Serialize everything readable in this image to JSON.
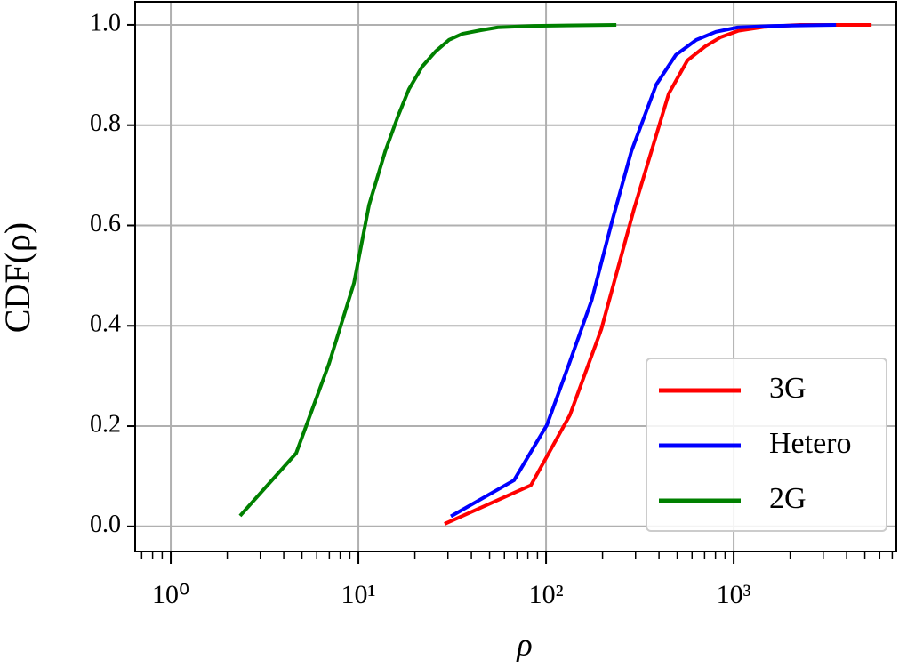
{
  "chart_data": {
    "type": "line",
    "xlabel": "ρ",
    "ylabel": "CDF(ρ)",
    "x_scale": "log",
    "x_minor_ticks": true,
    "grid": true,
    "legend": "lower right",
    "xlim": [
      0.646,
      7360
    ],
    "ylim": [
      -0.05,
      1.046
    ],
    "xticks": [
      {
        "value": 1,
        "label": "10⁰"
      },
      {
        "value": 10,
        "label": "10¹"
      },
      {
        "value": 100,
        "label": "10²"
      },
      {
        "value": 1000,
        "label": "10³"
      }
    ],
    "yticks": [
      {
        "value": 0,
        "label": "0.0"
      },
      {
        "value": 0.2,
        "label": "0.2"
      },
      {
        "value": 0.4,
        "label": "0.4"
      },
      {
        "value": 0.6,
        "label": "0.6"
      },
      {
        "value": 0.8,
        "label": "0.8"
      },
      {
        "value": 1,
        "label": "1.0"
      }
    ],
    "series": [
      {
        "name": "3G",
        "color": "#ff0000",
        "x": [
          28.8,
          83.0,
          134,
          197,
          294,
          451,
          567,
          705,
          849,
          1056,
          1465,
          2265,
          5430
        ],
        "values": [
          0.005,
          0.082,
          0.222,
          0.393,
          0.632,
          0.863,
          0.929,
          0.957,
          0.975,
          0.988,
          0.996,
          1.0,
          1.0
        ]
      },
      {
        "name": "Hetero",
        "color": "#0000ff",
        "x": [
          31.1,
          67.5,
          101,
          133,
          175,
          224,
          285,
          387,
          492,
          632,
          804,
          1056,
          1633,
          3510
        ],
        "values": [
          0.02,
          0.092,
          0.202,
          0.325,
          0.451,
          0.606,
          0.748,
          0.881,
          0.94,
          0.97,
          0.986,
          0.995,
          0.998,
          1.0
        ]
      },
      {
        "name": "2G",
        "color": "#008000",
        "x": [
          2.34,
          4.66,
          6.98,
          9.47,
          11.4,
          13.9,
          16.3,
          18.6,
          21.9,
          25.8,
          30.4,
          35.8,
          44.6,
          55.4,
          85.9,
          237
        ],
        "values": [
          0.021,
          0.146,
          0.325,
          0.485,
          0.641,
          0.748,
          0.819,
          0.872,
          0.917,
          0.947,
          0.97,
          0.982,
          0.989,
          0.995,
          0.998,
          1.0
        ]
      }
    ]
  }
}
